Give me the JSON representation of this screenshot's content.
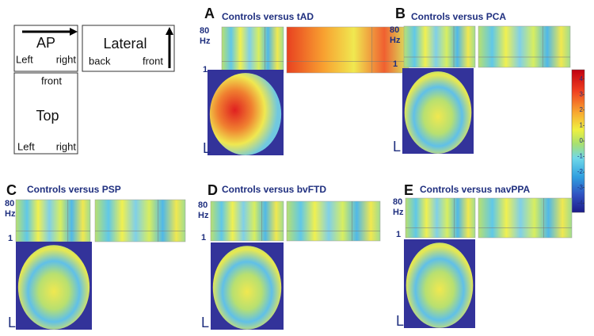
{
  "legend": {
    "ap": {
      "title": "AP",
      "left": "Left",
      "right": "right"
    },
    "lateral": {
      "title": "Lateral",
      "back": "back",
      "front": "front"
    },
    "top": {
      "title": "Top",
      "front": "front",
      "left": "Left",
      "right": "right"
    }
  },
  "panels": [
    {
      "letter": "A",
      "title": "Controls versus tAD",
      "y_top": "80",
      "y_unit": "Hz",
      "y_bottom": "1",
      "view": "L"
    },
    {
      "letter": "B",
      "title": "Controls versus PCA",
      "y_top": "80",
      "y_unit": "Hz",
      "y_bottom": "1",
      "view": "L"
    },
    {
      "letter": "C",
      "title": "Controls versus PSP",
      "y_top": "80",
      "y_unit": "Hz",
      "y_bottom": "1",
      "view": "L"
    },
    {
      "letter": "D",
      "title": "Controls versus bvFTD",
      "y_top": "80",
      "y_unit": "Hz",
      "y_bottom": "1",
      "view": "L"
    },
    {
      "letter": "E",
      "title": "Controls versus navPPA",
      "y_top": "80",
      "y_unit": "Hz",
      "y_bottom": "1",
      "view": "L"
    }
  ],
  "colorbar": {
    "lim": [
      -4.6,
      4.6
    ],
    "ticks": [
      4,
      3,
      2,
      1,
      0,
      -1,
      -2,
      -3,
      -4
    ]
  }
}
